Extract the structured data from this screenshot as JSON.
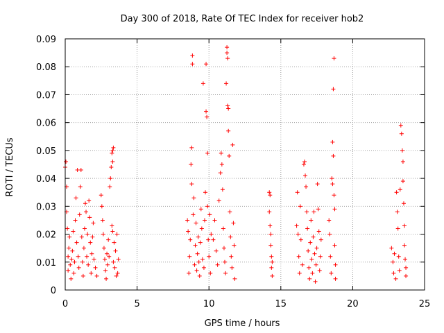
{
  "chart_data": {
    "type": "scatter",
    "title": "Day 300 of 2018, Rate Of TEC Index for receiver hob2",
    "xlabel": "GPS time / hours",
    "ylabel": "ROTI / TECUs",
    "xlim": [
      0,
      25
    ],
    "ylim": [
      0,
      0.09
    ],
    "xticks": [
      "0",
      "5",
      "10",
      "15",
      "20",
      "25"
    ],
    "yticks": [
      "0",
      "0.01",
      "0.02",
      "0.03",
      "0.04",
      "0.05",
      "0.06",
      "0.07",
      "0.08",
      "0.09"
    ],
    "grid": true,
    "marker": "+",
    "marker_color": "#ff0000",
    "series": [
      {
        "points": [
          [
            0.0,
            0.044
          ],
          [
            0.05,
            0.046
          ],
          [
            0.1,
            0.037
          ],
          [
            0.1,
            0.028
          ],
          [
            0.15,
            0.022
          ],
          [
            0.2,
            0.012
          ],
          [
            0.2,
            0.007
          ],
          [
            0.25,
            0.015
          ],
          [
            0.3,
            0.019
          ],
          [
            0.35,
            0.009
          ],
          [
            0.4,
            0.004
          ],
          [
            0.45,
            0.011
          ],
          [
            0.5,
            0.014
          ],
          [
            0.55,
            0.021
          ],
          [
            0.6,
            0.006
          ],
          [
            0.65,
            0.01
          ],
          [
            0.7,
            0.025
          ],
          [
            0.75,
            0.033
          ],
          [
            0.8,
            0.017
          ],
          [
            0.85,
            0.043
          ],
          [
            0.9,
            0.012
          ],
          [
            0.95,
            0.008
          ],
          [
            1.0,
            0.027
          ],
          [
            1.05,
            0.037
          ],
          [
            1.1,
            0.043
          ],
          [
            1.15,
            0.019
          ],
          [
            1.2,
            0.01
          ],
          [
            1.25,
            0.005
          ],
          [
            1.3,
            0.015
          ],
          [
            1.35,
            0.022
          ],
          [
            1.4,
            0.031
          ],
          [
            1.45,
            0.028
          ],
          [
            1.5,
            0.012
          ],
          [
            1.55,
            0.02
          ],
          [
            1.6,
            0.009
          ],
          [
            1.65,
            0.032
          ],
          [
            1.7,
            0.026
          ],
          [
            1.75,
            0.017
          ],
          [
            1.8,
            0.006
          ],
          [
            1.85,
            0.013
          ],
          [
            1.9,
            0.019
          ],
          [
            1.95,
            0.024
          ],
          [
            2.0,
            0.011
          ],
          [
            2.1,
            0.008
          ],
          [
            2.2,
            0.005
          ],
          [
            2.5,
            0.034
          ],
          [
            2.55,
            0.03
          ],
          [
            2.6,
            0.025
          ],
          [
            2.65,
            0.02
          ],
          [
            2.7,
            0.015
          ],
          [
            2.75,
            0.011
          ],
          [
            2.8,
            0.007
          ],
          [
            2.85,
            0.004
          ],
          [
            2.9,
            0.013
          ],
          [
            2.95,
            0.009
          ],
          [
            3.0,
            0.018
          ],
          [
            3.05,
            0.012
          ],
          [
            3.1,
            0.037
          ],
          [
            3.15,
            0.04
          ],
          [
            3.2,
            0.044
          ],
          [
            3.25,
            0.049
          ],
          [
            3.3,
            0.05
          ],
          [
            3.35,
            0.051
          ],
          [
            3.3,
            0.046
          ],
          [
            3.25,
            0.023
          ],
          [
            3.3,
            0.021
          ],
          [
            3.35,
            0.01
          ],
          [
            3.4,
            0.017
          ],
          [
            3.45,
            0.008
          ],
          [
            3.5,
            0.014
          ],
          [
            3.55,
            0.005
          ],
          [
            3.6,
            0.02
          ],
          [
            3.65,
            0.006
          ],
          [
            3.7,
            0.011
          ],
          [
            8.5,
            0.025
          ],
          [
            8.55,
            0.021
          ],
          [
            8.6,
            0.006
          ],
          [
            8.65,
            0.012
          ],
          [
            8.7,
            0.018
          ],
          [
            8.75,
            0.045
          ],
          [
            8.8,
            0.038
          ],
          [
            8.8,
            0.051
          ],
          [
            8.85,
            0.084
          ],
          [
            8.85,
            0.081
          ],
          [
            8.9,
            0.027
          ],
          [
            8.95,
            0.033
          ],
          [
            9.0,
            0.009
          ],
          [
            9.05,
            0.016
          ],
          [
            9.1,
            0.024
          ],
          [
            9.15,
            0.007
          ],
          [
            9.2,
            0.013
          ],
          [
            9.25,
            0.019
          ],
          [
            9.3,
            0.01
          ],
          [
            9.35,
            0.005
          ],
          [
            9.4,
            0.017
          ],
          [
            9.45,
            0.029
          ],
          [
            9.5,
            0.022
          ],
          [
            9.55,
            0.011
          ],
          [
            9.6,
            0.074
          ],
          [
            9.65,
            0.008
          ],
          [
            9.7,
            0.025
          ],
          [
            9.75,
            0.035
          ],
          [
            9.8,
            0.064
          ],
          [
            9.8,
            0.081
          ],
          [
            9.85,
            0.062
          ],
          [
            9.9,
            0.049
          ],
          [
            9.9,
            0.03
          ],
          [
            9.95,
            0.018
          ],
          [
            10.0,
            0.012
          ],
          [
            10.05,
            0.027
          ],
          [
            10.1,
            0.006
          ],
          [
            10.15,
            0.02
          ],
          [
            10.3,
            0.018
          ],
          [
            10.4,
            0.025
          ],
          [
            10.5,
            0.014
          ],
          [
            10.6,
            0.009
          ],
          [
            10.7,
            0.032
          ],
          [
            10.8,
            0.042
          ],
          [
            10.85,
            0.049
          ],
          [
            10.9,
            0.045
          ],
          [
            10.95,
            0.036
          ],
          [
            11.0,
            0.022
          ],
          [
            11.05,
            0.015
          ],
          [
            11.1,
            0.01
          ],
          [
            11.15,
            0.006
          ],
          [
            11.2,
            0.074
          ],
          [
            11.25,
            0.087
          ],
          [
            11.25,
            0.085
          ],
          [
            11.3,
            0.083
          ],
          [
            11.3,
            0.066
          ],
          [
            11.35,
            0.065
          ],
          [
            11.35,
            0.057
          ],
          [
            11.4,
            0.048
          ],
          [
            11.45,
            0.028
          ],
          [
            11.5,
            0.019
          ],
          [
            11.55,
            0.012
          ],
          [
            11.6,
            0.008
          ],
          [
            11.65,
            0.052
          ],
          [
            11.7,
            0.024
          ],
          [
            11.75,
            0.016
          ],
          [
            11.8,
            0.004
          ],
          [
            14.2,
            0.035
          ],
          [
            14.25,
            0.034
          ],
          [
            14.2,
            0.028
          ],
          [
            14.25,
            0.023
          ],
          [
            14.3,
            0.02
          ],
          [
            14.3,
            0.016
          ],
          [
            14.35,
            0.012
          ],
          [
            14.35,
            0.008
          ],
          [
            14.4,
            0.005
          ],
          [
            14.4,
            0.01
          ],
          [
            16.1,
            0.023
          ],
          [
            16.15,
            0.035
          ],
          [
            16.2,
            0.02
          ],
          [
            16.25,
            0.012
          ],
          [
            16.3,
            0.006
          ],
          [
            16.35,
            0.03
          ],
          [
            16.4,
            0.018
          ],
          [
            16.5,
            0.009
          ],
          [
            16.6,
            0.045
          ],
          [
            16.65,
            0.046
          ],
          [
            16.7,
            0.041
          ],
          [
            16.75,
            0.037
          ],
          [
            16.8,
            0.028
          ],
          [
            16.85,
            0.022
          ],
          [
            16.9,
            0.014
          ],
          [
            16.95,
            0.008
          ],
          [
            17.0,
            0.004
          ],
          [
            17.05,
            0.017
          ],
          [
            17.1,
            0.025
          ],
          [
            17.15,
            0.011
          ],
          [
            17.2,
            0.006
          ],
          [
            17.25,
            0.019
          ],
          [
            17.3,
            0.028
          ],
          [
            17.35,
            0.013
          ],
          [
            17.4,
            0.003
          ],
          [
            17.45,
            0.009
          ],
          [
            17.5,
            0.015
          ],
          [
            17.55,
            0.038
          ],
          [
            17.6,
            0.029
          ],
          [
            17.65,
            0.021
          ],
          [
            17.7,
            0.007
          ],
          [
            17.75,
            0.012
          ],
          [
            17.8,
            0.018
          ],
          [
            18.35,
            0.025
          ],
          [
            18.4,
            0.02
          ],
          [
            18.45,
            0.012
          ],
          [
            18.5,
            0.006
          ],
          [
            18.55,
            0.04
          ],
          [
            18.6,
            0.053
          ],
          [
            18.6,
            0.038
          ],
          [
            18.65,
            0.048
          ],
          [
            18.65,
            0.072
          ],
          [
            18.7,
            0.083
          ],
          [
            18.7,
            0.034
          ],
          [
            18.75,
            0.029
          ],
          [
            18.75,
            0.016
          ],
          [
            18.8,
            0.009
          ],
          [
            18.8,
            0.004
          ],
          [
            22.7,
            0.015
          ],
          [
            22.8,
            0.01
          ],
          [
            22.85,
            0.006
          ],
          [
            22.9,
            0.013
          ],
          [
            23.0,
            0.004
          ],
          [
            23.05,
            0.035
          ],
          [
            23.1,
            0.028
          ],
          [
            23.15,
            0.022
          ],
          [
            23.2,
            0.012
          ],
          [
            23.25,
            0.007
          ],
          [
            23.3,
            0.036
          ],
          [
            23.35,
            0.059
          ],
          [
            23.4,
            0.056
          ],
          [
            23.45,
            0.05
          ],
          [
            23.5,
            0.046
          ],
          [
            23.5,
            0.039
          ],
          [
            23.55,
            0.031
          ],
          [
            23.6,
            0.023
          ],
          [
            23.6,
            0.016
          ],
          [
            23.65,
            0.011
          ],
          [
            23.7,
            0.005
          ],
          [
            23.7,
            0.008
          ]
        ]
      }
    ]
  }
}
